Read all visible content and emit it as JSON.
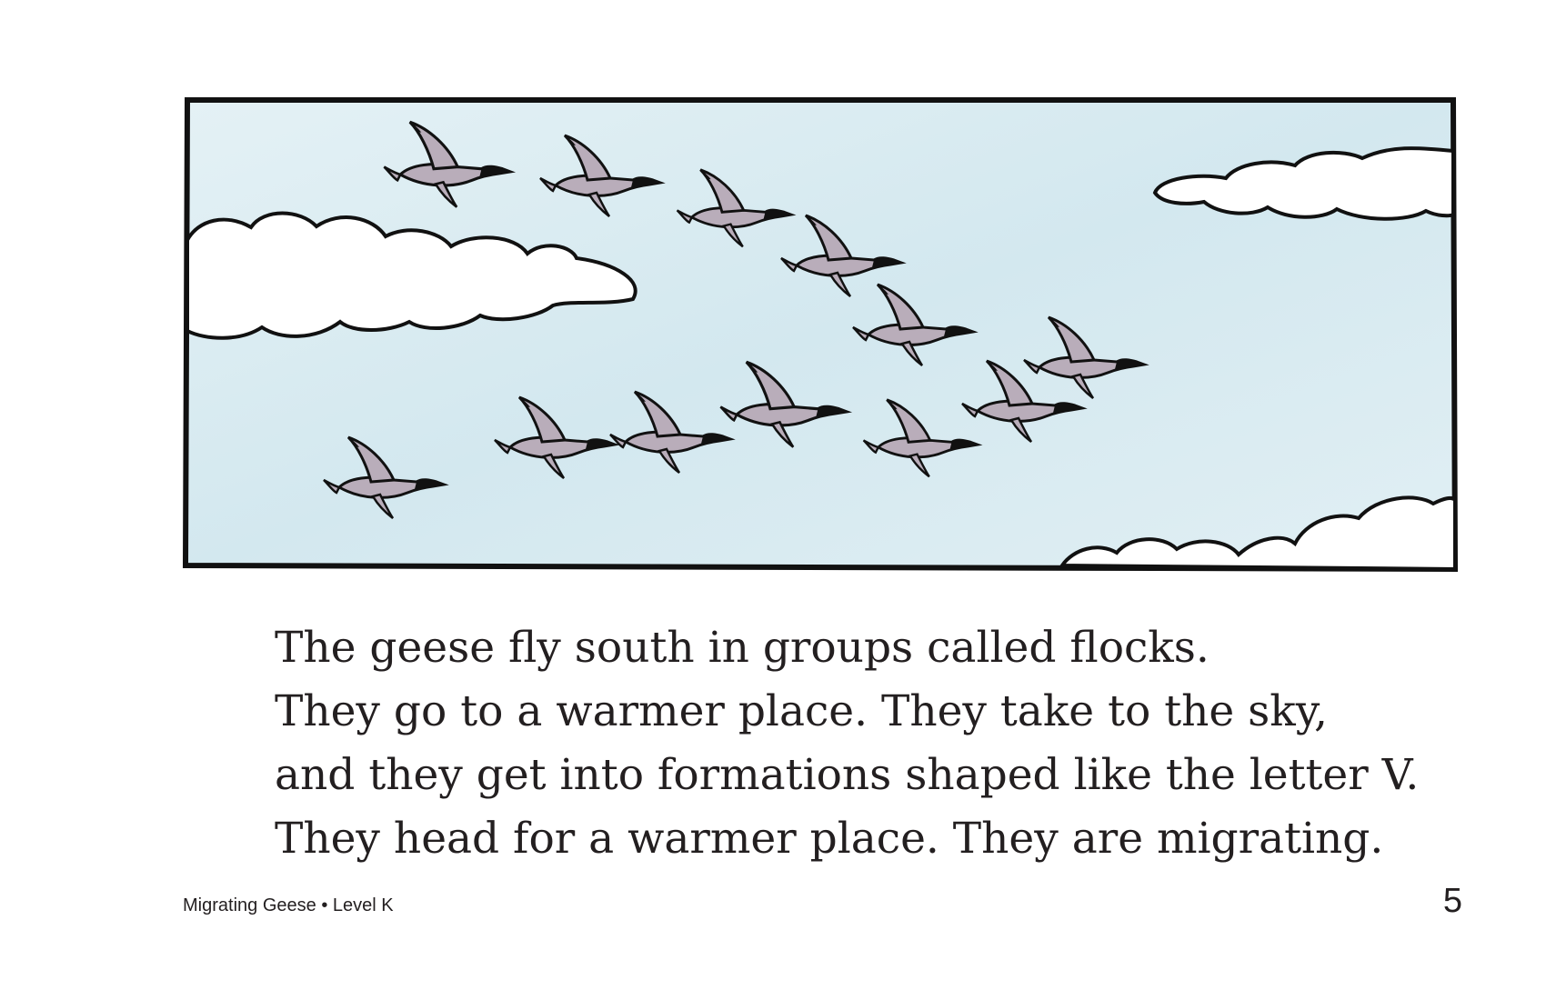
{
  "illustration": {
    "subject": "flock of geese flying in V formation among clouds",
    "sky_color": "#dceef4",
    "goose_body_color": "#b9adba",
    "outline_color": "#111111",
    "cloud_color": "#ffffff"
  },
  "story": {
    "lines": [
      "The geese fly south in groups called flocks.",
      "They go to a warmer place. They take to the sky,",
      "and they get into formations shaped like the letter V.",
      "They head for a warmer place. They are migrating."
    ]
  },
  "footer": {
    "book_title": "Migrating Geese",
    "separator": "•",
    "level": "Level K",
    "page_number": "5"
  }
}
